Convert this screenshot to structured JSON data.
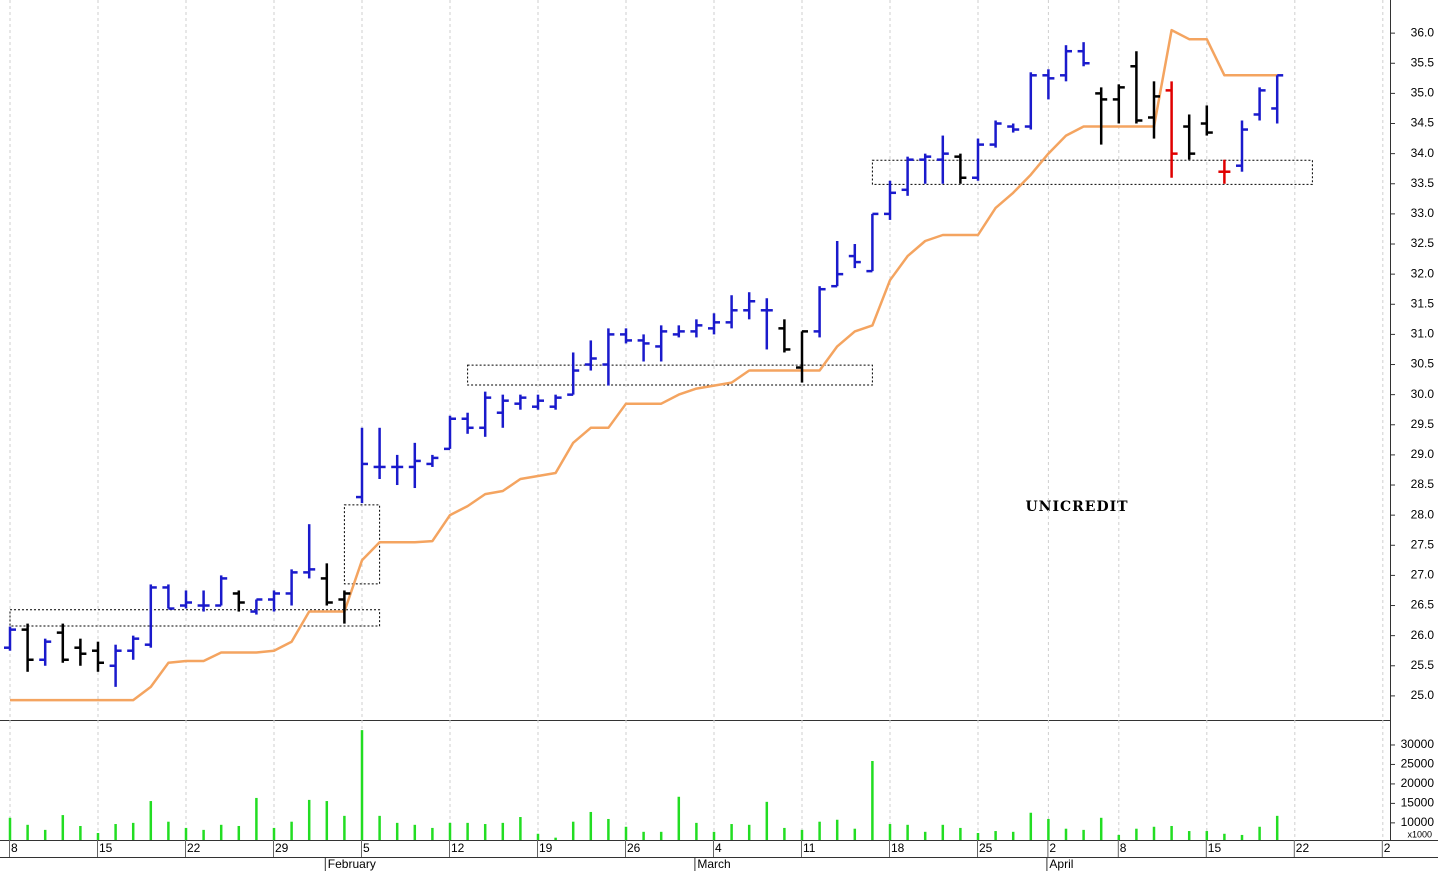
{
  "chart_data": {
    "type": "ohlc",
    "title": "UNICREDIT",
    "categories": [
      "8",
      null,
      null,
      null,
      null,
      "15",
      null,
      null,
      null,
      null,
      "22",
      null,
      null,
      null,
      null,
      "29",
      null,
      null,
      null,
      null,
      "5",
      null,
      null,
      null,
      null,
      "12",
      null,
      null,
      null,
      null,
      "19",
      null,
      null,
      null,
      null,
      "26",
      null,
      null,
      null,
      null,
      "4",
      null,
      null,
      null,
      null,
      "11",
      null,
      null,
      null,
      null,
      "18",
      null,
      null,
      null,
      null,
      "25",
      null,
      null,
      null,
      "2",
      null,
      null,
      null,
      "8",
      null,
      null,
      null,
      null,
      "15",
      null,
      null,
      null,
      null,
      "22",
      null,
      null,
      null,
      null,
      "2"
    ],
    "month_labels": [
      null,
      null,
      null,
      null,
      null,
      null,
      null,
      null,
      null,
      null,
      null,
      null,
      null,
      null,
      null,
      null,
      null,
      null,
      "February",
      null,
      null,
      null,
      null,
      null,
      null,
      null,
      null,
      null,
      null,
      null,
      null,
      null,
      null,
      null,
      null,
      null,
      null,
      null,
      null,
      "March",
      null,
      null,
      null,
      null,
      null,
      null,
      null,
      null,
      null,
      null,
      null,
      null,
      null,
      null,
      null,
      null,
      null,
      null,
      null,
      "April",
      null,
      null,
      null,
      null,
      null,
      null,
      null,
      null,
      null,
      null,
      null,
      null,
      null,
      null,
      null,
      null,
      null,
      null,
      null
    ],
    "ohlc": {
      "open": [
        25.8,
        26.1,
        25.6,
        26.05,
        25.8,
        25.75,
        25.5,
        25.75,
        25.85,
        26.8,
        26.5,
        26.5,
        26.5,
        26.7,
        26.4,
        26.6,
        26.7,
        27.05,
        26.95,
        26.6,
        28.3,
        28.8,
        28.8,
        28.8,
        28.85,
        29.1,
        29.6,
        29.45,
        29.7,
        29.85,
        29.8,
        29.8,
        30.0,
        30.5,
        30.5,
        31.0,
        30.9,
        30.8,
        31.0,
        31.05,
        31.1,
        31.2,
        31.4,
        31.4,
        31.1,
        30.45,
        31.05,
        31.8,
        32.3,
        32.05,
        33.0,
        33.4,
        33.9,
        33.9,
        33.95,
        33.6,
        34.15,
        34.45,
        34.45,
        35.3,
        35.3,
        35.7,
        35.0,
        34.9,
        35.45,
        34.6,
        35.05,
        34.45,
        34.5,
        33.7,
        33.8,
        34.65,
        34.75,
        null,
        null,
        null,
        null,
        null,
        null
      ],
      "high": [
        26.15,
        26.2,
        25.95,
        26.2,
        25.95,
        25.9,
        25.85,
        26.0,
        26.85,
        26.85,
        26.75,
        26.75,
        27.0,
        26.75,
        26.6,
        26.75,
        27.1,
        27.85,
        27.2,
        26.75,
        29.45,
        29.45,
        29.0,
        29.2,
        29.0,
        29.65,
        29.7,
        30.05,
        30.0,
        30.0,
        30.0,
        30.0,
        30.7,
        30.9,
        31.1,
        31.1,
        31.0,
        31.15,
        31.15,
        31.25,
        31.35,
        31.65,
        31.7,
        31.6,
        31.25,
        31.05,
        31.8,
        32.55,
        32.5,
        33.0,
        33.55,
        33.95,
        34.0,
        34.3,
        34.0,
        34.25,
        34.55,
        34.5,
        35.35,
        35.4,
        35.8,
        35.85,
        35.1,
        35.15,
        35.7,
        35.2,
        35.2,
        34.65,
        34.8,
        33.9,
        34.55,
        35.1,
        35.3,
        null,
        null,
        null,
        null,
        null,
        null
      ],
      "low": [
        25.75,
        25.4,
        25.5,
        25.55,
        25.5,
        25.4,
        25.15,
        25.6,
        25.8,
        26.45,
        26.45,
        26.4,
        26.5,
        26.4,
        26.35,
        26.4,
        26.5,
        26.95,
        26.5,
        26.2,
        28.2,
        28.6,
        28.5,
        28.45,
        28.8,
        29.1,
        29.35,
        29.3,
        29.45,
        29.75,
        29.75,
        29.75,
        30.0,
        30.4,
        30.15,
        30.85,
        30.55,
        30.55,
        30.95,
        30.95,
        31.0,
        31.1,
        31.25,
        30.75,
        30.7,
        30.2,
        30.95,
        31.8,
        32.1,
        32.05,
        32.9,
        33.3,
        33.5,
        33.5,
        33.5,
        33.55,
        34.1,
        34.35,
        34.4,
        34.9,
        35.2,
        35.45,
        34.15,
        34.5,
        34.5,
        34.25,
        33.6,
        33.9,
        34.3,
        33.5,
        33.7,
        34.55,
        34.5,
        null,
        null,
        null,
        null,
        null,
        null
      ],
      "close": [
        26.1,
        25.6,
        25.9,
        25.6,
        25.7,
        25.55,
        25.75,
        25.95,
        26.8,
        26.45,
        26.55,
        26.5,
        26.95,
        26.55,
        26.6,
        26.7,
        27.05,
        27.1,
        26.55,
        26.7,
        28.85,
        28.8,
        28.8,
        28.9,
        28.95,
        29.6,
        29.45,
        29.95,
        29.9,
        29.95,
        29.9,
        29.95,
        30.4,
        30.6,
        31.0,
        30.9,
        30.85,
        31.05,
        31.05,
        31.15,
        31.2,
        31.4,
        31.55,
        31.4,
        30.75,
        31.05,
        31.75,
        32.0,
        32.2,
        33.0,
        33.35,
        33.9,
        33.95,
        34.0,
        33.6,
        34.15,
        34.5,
        34.4,
        35.3,
        35.25,
        35.7,
        35.5,
        34.9,
        35.1,
        34.55,
        34.95,
        34.0,
        34.0,
        34.35,
        33.7,
        34.4,
        35.05,
        35.3,
        null,
        null,
        null,
        null,
        null,
        null
      ],
      "colors": [
        "#1a1acc",
        "#000000",
        "#1a1acc",
        "#000000",
        "#000000",
        "#000000",
        "#1a1acc",
        "#1a1acc",
        "#1a1acc",
        "#1a1acc",
        "#1a1acc",
        "#1a1acc",
        "#1a1acc",
        "#000000",
        "#1a1acc",
        "#1a1acc",
        "#1a1acc",
        "#1a1acc",
        "#000000",
        "#000000",
        "#1a1acc",
        "#1a1acc",
        "#1a1acc",
        "#1a1acc",
        "#1a1acc",
        "#1a1acc",
        "#1a1acc",
        "#1a1acc",
        "#1a1acc",
        "#1a1acc",
        "#1a1acc",
        "#1a1acc",
        "#1a1acc",
        "#1a1acc",
        "#1a1acc",
        "#1a1acc",
        "#1a1acc",
        "#1a1acc",
        "#1a1acc",
        "#1a1acc",
        "#1a1acc",
        "#1a1acc",
        "#1a1acc",
        "#1a1acc",
        "#000000",
        "#000000",
        "#1a1acc",
        "#1a1acc",
        "#1a1acc",
        "#1a1acc",
        "#1a1acc",
        "#1a1acc",
        "#1a1acc",
        "#1a1acc",
        "#000000",
        "#1a1acc",
        "#1a1acc",
        "#1a1acc",
        "#1a1acc",
        "#1a1acc",
        "#1a1acc",
        "#1a1acc",
        "#000000",
        "#000000",
        "#000000",
        "#000000",
        "#e00000",
        "#000000",
        "#000000",
        "#e00000",
        "#1a1acc",
        "#1a1acc",
        "#1a1acc",
        null,
        null,
        null,
        null,
        null,
        null
      ]
    },
    "line": {
      "color": "#f4a460",
      "values": [
        24.93,
        24.93,
        24.93,
        24.93,
        24.93,
        24.93,
        24.93,
        24.93,
        25.15,
        25.55,
        25.58,
        25.58,
        25.72,
        25.72,
        25.72,
        25.75,
        25.9,
        26.4,
        26.4,
        26.4,
        27.25,
        27.55,
        27.55,
        27.55,
        27.57,
        28.0,
        28.15,
        28.35,
        28.4,
        28.6,
        28.65,
        28.7,
        29.2,
        29.45,
        29.45,
        29.85,
        29.85,
        29.85,
        30.0,
        30.1,
        30.15,
        30.2,
        30.4,
        30.4,
        30.4,
        30.4,
        30.4,
        30.8,
        31.05,
        31.15,
        31.9,
        32.3,
        32.55,
        32.65,
        32.65,
        32.65,
        33.1,
        33.35,
        33.65,
        34.0,
        34.3,
        34.45,
        34.45,
        34.45,
        34.45,
        34.45,
        36.05,
        35.9,
        35.9,
        35.3,
        35.3,
        35.3,
        35.3,
        null,
        null,
        null,
        null,
        null,
        null
      ]
    },
    "zones": [
      {
        "from": 0,
        "to": 21,
        "low": 26.16,
        "high": 26.43
      },
      {
        "from": 19,
        "to": 21,
        "low": 26.86,
        "high": 28.17
      },
      {
        "from": 26,
        "to": 49,
        "low": 30.16,
        "high": 30.49
      },
      {
        "from": 49,
        "to": 74,
        "low": 33.49,
        "high": 33.89
      }
    ],
    "ylim": [
      24.6,
      36.55
    ],
    "yticks": [
      {
        "value": 25,
        "label": "25.0"
      },
      {
        "value": 25.5,
        "label": "25.5"
      },
      {
        "value": 26,
        "label": "26.0"
      },
      {
        "value": 26.5,
        "label": "26.5"
      },
      {
        "value": 27,
        "label": "27.0"
      },
      {
        "value": 27.5,
        "label": "27.5"
      },
      {
        "value": 28,
        "label": "28.0"
      },
      {
        "value": 28.5,
        "label": "28.5"
      },
      {
        "value": 29,
        "label": "29.0"
      },
      {
        "value": 29.5,
        "label": "29.5"
      },
      {
        "value": 30,
        "label": "30.0"
      },
      {
        "value": 30.5,
        "label": "30.5"
      },
      {
        "value": 31,
        "label": "31.0"
      },
      {
        "value": 31.5,
        "label": "31.5"
      },
      {
        "value": 32,
        "label": "32.0"
      },
      {
        "value": 32.5,
        "label": "32.5"
      },
      {
        "value": 33,
        "label": "33.0"
      },
      {
        "value": 33.5,
        "label": "33.5"
      },
      {
        "value": 34,
        "label": "34.0"
      },
      {
        "value": 34.5,
        "label": "34.5"
      },
      {
        "value": 35,
        "label": "35.0"
      },
      {
        "value": 35.5,
        "label": "35.5"
      },
      {
        "value": 36,
        "label": "36.0"
      }
    ],
    "grid": true,
    "volume": {
      "color": "#22dd22",
      "unit_label": "x1000",
      "ylim": [
        5600,
        35900
      ],
      "yticks": [
        10000,
        15000,
        20000,
        25000,
        30000
      ],
      "values": [
        11300,
        9500,
        8200,
        12000,
        9200,
        7400,
        9700,
        10000,
        15600,
        10300,
        8700,
        8200,
        9500,
        9200,
        16400,
        8700,
        10300,
        15900,
        15600,
        11800,
        33800,
        11800,
        10000,
        9500,
        8700,
        10000,
        10000,
        9700,
        10000,
        11500,
        7200,
        6200,
        10300,
        12800,
        11000,
        9000,
        7700,
        7700,
        16700,
        10000,
        7700,
        9700,
        9500,
        15400,
        8700,
        8200,
        10300,
        10800,
        8500,
        25900,
        9700,
        9500,
        7700,
        9500,
        8700,
        7400,
        7900,
        7700,
        12600,
        11000,
        8500,
        8200,
        11300,
        6900,
        8500,
        9000,
        9200,
        7900,
        7900,
        7200,
        6900,
        9000,
        11800,
        null,
        null,
        null,
        null,
        null,
        null
      ]
    }
  }
}
